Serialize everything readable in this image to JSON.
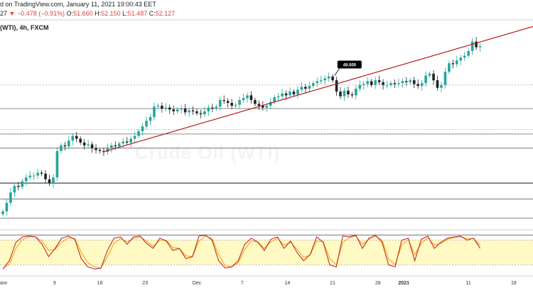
{
  "header": {
    "published": "d on TradingView.com, January 11, 2021 19:00:43 EET",
    "change_prefix": "27",
    "change_symbol": "▼",
    "change_value": "−0.478 (−0.91%)",
    "o_label": "O:",
    "o_value": "51.660",
    "h_label": "H:",
    "h_value": "52.150",
    "l_label": "L:",
    "l_value": "51.487",
    "c_label": "C:",
    "c_value": "52.127"
  },
  "symbol_line": "(WTI), 4h, FXCM",
  "watermark": "Crude Oil (WTI)",
  "colors": {
    "up": "#26a69a",
    "down": "#222222",
    "trendline": "#b71c1c",
    "stoch_k": "#b71c1c",
    "stoch_d": "#ff9800",
    "stoch_band": "#fff9c4",
    "hline": "#444444",
    "dash": "#9e9e9e"
  },
  "chart_data": [
    {
      "type": "candlestick",
      "timeframe": "4h",
      "xlim": [
        "Oct 30",
        "Jan 19"
      ],
      "ylim": [
        34,
        54
      ],
      "x_ticks": [
        "Nov",
        "9",
        "16",
        "23",
        "Dec",
        "7",
        "14",
        "21",
        "28",
        "2021",
        "11",
        "18"
      ],
      "x_tick_days": [
        0,
        8,
        15,
        22,
        30,
        37,
        44,
        51,
        58,
        62,
        72,
        79
      ],
      "annotation": {
        "text": "49.000",
        "day": 51.3,
        "price": 49.0
      },
      "trendline": [
        {
          "day": 15.5,
          "price": 40.9
        },
        {
          "day": 82,
          "price": 54.2
        }
      ],
      "horizontal_lines": [
        45.5,
        42.8,
        41.3,
        37.6,
        35.9,
        33.9,
        32.1
      ],
      "dashed_lines": [
        48.0,
        43.3
      ],
      "series": [
        {
          "name": "price",
          "points": [
            {
              "d": 0.0,
              "c": 34.6
            },
            {
              "d": 0.6,
              "c": 35.5
            },
            {
              "d": 1.2,
              "c": 36.6
            },
            {
              "d": 1.8,
              "c": 37.3
            },
            {
              "d": 2.4,
              "c": 37.2
            },
            {
              "d": 3.0,
              "c": 37.8
            },
            {
              "d": 3.6,
              "c": 38.2
            },
            {
              "d": 4.2,
              "c": 38.4
            },
            {
              "d": 4.8,
              "c": 38.4
            },
            {
              "d": 5.4,
              "c": 38.7
            },
            {
              "d": 6.0,
              "c": 38.6
            },
            {
              "d": 6.6,
              "c": 38.0
            },
            {
              "d": 7.2,
              "c": 37.6
            },
            {
              "d": 7.8,
              "c": 38.2
            },
            {
              "d": 8.4,
              "c": 41.0
            },
            {
              "d": 9.0,
              "c": 41.6
            },
            {
              "d": 9.6,
              "c": 41.5
            },
            {
              "d": 10.2,
              "c": 42.1
            },
            {
              "d": 10.8,
              "c": 42.6
            },
            {
              "d": 11.4,
              "c": 42.3
            },
            {
              "d": 12.0,
              "c": 41.9
            },
            {
              "d": 12.6,
              "c": 41.6
            },
            {
              "d": 13.2,
              "c": 41.7
            },
            {
              "d": 13.8,
              "c": 41.3
            },
            {
              "d": 14.4,
              "c": 41.1
            },
            {
              "d": 15.0,
              "c": 41.0
            },
            {
              "d": 15.6,
              "c": 40.9
            },
            {
              "d": 16.2,
              "c": 41.3
            },
            {
              "d": 16.8,
              "c": 41.6
            },
            {
              "d": 17.4,
              "c": 41.5
            },
            {
              "d": 18.0,
              "c": 41.8
            },
            {
              "d": 18.6,
              "c": 42.0
            },
            {
              "d": 19.2,
              "c": 41.9
            },
            {
              "d": 19.8,
              "c": 42.3
            },
            {
              "d": 20.4,
              "c": 42.6
            },
            {
              "d": 21.0,
              "c": 43.1
            },
            {
              "d": 21.6,
              "c": 43.6
            },
            {
              "d": 22.2,
              "c": 44.2
            },
            {
              "d": 22.8,
              "c": 44.6
            },
            {
              "d": 23.4,
              "c": 45.7
            },
            {
              "d": 24.0,
              "c": 45.8
            },
            {
              "d": 24.6,
              "c": 45.5
            },
            {
              "d": 25.2,
              "c": 45.6
            },
            {
              "d": 25.8,
              "c": 45.4
            },
            {
              "d": 26.4,
              "c": 45.2
            },
            {
              "d": 27.0,
              "c": 45.4
            },
            {
              "d": 27.6,
              "c": 45.5
            },
            {
              "d": 28.2,
              "c": 45.1
            },
            {
              "d": 28.8,
              "c": 45.3
            },
            {
              "d": 29.4,
              "c": 45.2
            },
            {
              "d": 30.0,
              "c": 45.0
            },
            {
              "d": 30.6,
              "c": 44.9
            },
            {
              "d": 31.2,
              "c": 45.2
            },
            {
              "d": 31.8,
              "c": 45.6
            },
            {
              "d": 32.4,
              "c": 45.5
            },
            {
              "d": 33.0,
              "c": 45.7
            },
            {
              "d": 33.6,
              "c": 46.4
            },
            {
              "d": 34.2,
              "c": 46.3
            },
            {
              "d": 34.8,
              "c": 46.1
            },
            {
              "d": 35.4,
              "c": 45.8
            },
            {
              "d": 36.0,
              "c": 45.9
            },
            {
              "d": 36.6,
              "c": 46.4
            },
            {
              "d": 37.2,
              "c": 46.6
            },
            {
              "d": 37.8,
              "c": 46.9
            },
            {
              "d": 38.4,
              "c": 46.4
            },
            {
              "d": 39.0,
              "c": 46.0
            },
            {
              "d": 39.6,
              "c": 45.8
            },
            {
              "d": 40.2,
              "c": 45.6
            },
            {
              "d": 40.8,
              "c": 45.8
            },
            {
              "d": 41.4,
              "c": 46.2
            },
            {
              "d": 42.0,
              "c": 46.7
            },
            {
              "d": 42.6,
              "c": 46.8
            },
            {
              "d": 43.2,
              "c": 47.1
            },
            {
              "d": 43.8,
              "c": 46.9
            },
            {
              "d": 44.4,
              "c": 47.3
            },
            {
              "d": 45.0,
              "c": 47.0
            },
            {
              "d": 45.6,
              "c": 47.5
            },
            {
              "d": 46.2,
              "c": 47.8
            },
            {
              "d": 46.8,
              "c": 47.6
            },
            {
              "d": 47.4,
              "c": 47.9
            },
            {
              "d": 48.0,
              "c": 48.2
            },
            {
              "d": 48.6,
              "c": 48.4
            },
            {
              "d": 49.2,
              "c": 48.5
            },
            {
              "d": 49.8,
              "c": 48.7
            },
            {
              "d": 50.4,
              "c": 48.9
            },
            {
              "d": 51.0,
              "c": 48.5
            },
            {
              "d": 51.6,
              "c": 47.3
            },
            {
              "d": 52.2,
              "c": 46.8
            },
            {
              "d": 52.8,
              "c": 47.4
            },
            {
              "d": 53.4,
              "c": 47.0
            },
            {
              "d": 54.0,
              "c": 46.9
            },
            {
              "d": 54.6,
              "c": 47.6
            },
            {
              "d": 55.2,
              "c": 48.0
            },
            {
              "d": 55.8,
              "c": 48.1
            },
            {
              "d": 56.4,
              "c": 48.4
            },
            {
              "d": 57.0,
              "c": 48.0
            },
            {
              "d": 57.6,
              "c": 48.5
            },
            {
              "d": 58.2,
              "c": 48.3
            },
            {
              "d": 58.8,
              "c": 48.0
            },
            {
              "d": 59.4,
              "c": 48.0
            },
            {
              "d": 60.0,
              "c": 48.2
            },
            {
              "d": 60.6,
              "c": 48.1
            },
            {
              "d": 61.2,
              "c": 48.2
            },
            {
              "d": 61.8,
              "c": 48.4
            },
            {
              "d": 62.4,
              "c": 48.3
            },
            {
              "d": 63.0,
              "c": 48.5
            },
            {
              "d": 63.6,
              "c": 48.1
            },
            {
              "d": 64.2,
              "c": 47.9
            },
            {
              "d": 64.8,
              "c": 48.2
            },
            {
              "d": 65.4,
              "c": 49.0
            },
            {
              "d": 66.0,
              "c": 49.2
            },
            {
              "d": 66.6,
              "c": 48.5
            },
            {
              "d": 67.2,
              "c": 47.7
            },
            {
              "d": 67.8,
              "c": 48.0
            },
            {
              "d": 68.4,
              "c": 49.4
            },
            {
              "d": 69.0,
              "c": 50.3
            },
            {
              "d": 69.6,
              "c": 50.2
            },
            {
              "d": 70.2,
              "c": 50.6
            },
            {
              "d": 70.8,
              "c": 50.9
            },
            {
              "d": 71.4,
              "c": 51.1
            },
            {
              "d": 72.0,
              "c": 51.6
            },
            {
              "d": 72.6,
              "c": 52.6
            },
            {
              "d": 73.2,
              "c": 52.0
            },
            {
              "d": 73.8,
              "c": 52.1
            }
          ]
        }
      ]
    },
    {
      "type": "line",
      "indicator": "stochastic",
      "ylim": [
        0,
        100
      ],
      "band": [
        20,
        80
      ],
      "series": [
        {
          "name": "k",
          "values": [
            10,
            30,
            75,
            88,
            90,
            88,
            70,
            40,
            60,
            85,
            90,
            82,
            35,
            15,
            10,
            12,
            55,
            85,
            88,
            70,
            88,
            90,
            72,
            60,
            85,
            78,
            55,
            60,
            35,
            40,
            90,
            92,
            80,
            30,
            12,
            15,
            30,
            70,
            85,
            75,
            55,
            82,
            88,
            60,
            78,
            50,
            30,
            45,
            88,
            75,
            20,
            15,
            90,
            88,
            92,
            60,
            85,
            92,
            75,
            20,
            15,
            80,
            85,
            30,
            82,
            90,
            60,
            75,
            85,
            88,
            90,
            80,
            85,
            60
          ]
        },
        {
          "name": "d",
          "values": [
            12,
            22,
            60,
            82,
            88,
            88,
            78,
            55,
            58,
            75,
            86,
            84,
            50,
            25,
            15,
            12,
            40,
            72,
            84,
            76,
            84,
            88,
            78,
            65,
            80,
            80,
            62,
            60,
            42,
            40,
            78,
            90,
            84,
            45,
            18,
            15,
            25,
            58,
            78,
            76,
            60,
            76,
            85,
            68,
            75,
            58,
            38,
            44,
            78,
            76,
            35,
            20,
            75,
            86,
            90,
            70,
            82,
            90,
            80,
            35,
            20,
            68,
            82,
            45,
            72,
            86,
            68,
            72,
            82,
            86,
            88,
            84,
            84,
            68
          ]
        }
      ]
    }
  ]
}
